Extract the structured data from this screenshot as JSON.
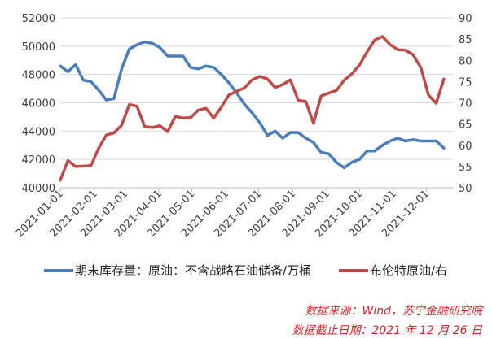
{
  "chart_data": {
    "type": "line",
    "x": [
      "2021-01-01",
      "2021-01-08",
      "2021-01-15",
      "2021-01-22",
      "2021-01-29",
      "2021-02-05",
      "2021-02-12",
      "2021-02-19",
      "2021-02-26",
      "2021-03-05",
      "2021-03-12",
      "2021-03-19",
      "2021-03-26",
      "2021-04-02",
      "2021-04-09",
      "2021-04-16",
      "2021-04-23",
      "2021-04-30",
      "2021-05-07",
      "2021-05-14",
      "2021-05-21",
      "2021-05-28",
      "2021-06-04",
      "2021-06-11",
      "2021-06-18",
      "2021-06-25",
      "2021-07-02",
      "2021-07-09",
      "2021-07-16",
      "2021-07-23",
      "2021-07-30",
      "2021-08-06",
      "2021-08-13",
      "2021-08-20",
      "2021-08-27",
      "2021-09-03",
      "2021-09-10",
      "2021-09-17",
      "2021-09-24",
      "2021-10-01",
      "2021-10-08",
      "2021-10-15",
      "2021-10-22",
      "2021-10-29",
      "2021-11-05",
      "2021-11-12",
      "2021-11-19",
      "2021-11-26",
      "2021-12-03",
      "2021-12-10",
      "2021-12-17"
    ],
    "x_ticks": [
      "2021-01-01",
      "2021-02-01",
      "2021-03-01",
      "2021-04-01",
      "2021-05-01",
      "2021-06-01",
      "2021-07-01",
      "2021-08-01",
      "2021-09-01",
      "2021-10-01",
      "2021-11-01",
      "2021-12-01"
    ],
    "y_left": {
      "ticks": [
        "40000",
        "42000",
        "44000",
        "46000",
        "48000",
        "50000",
        "52000"
      ],
      "lim": [
        40000,
        52000
      ]
    },
    "y_right": {
      "ticks": [
        "50",
        "55",
        "60",
        "65",
        "70",
        "75",
        "80",
        "85",
        "90"
      ],
      "lim": [
        50,
        90
      ]
    },
    "grid": true,
    "legend_position": "bottom",
    "series": [
      {
        "name": "期末库存量：原油：不含战略石油储备/万桶",
        "axis": "left",
        "color": "#4a7ebb",
        "values": [
          48600,
          48200,
          48700,
          47600,
          47500,
          46900,
          46200,
          46300,
          48400,
          49800,
          50100,
          50300,
          50200,
          49900,
          49300,
          49300,
          49300,
          48500,
          48400,
          48600,
          48500,
          48000,
          47400,
          46700,
          45900,
          45300,
          44600,
          43700,
          44000,
          43500,
          43900,
          43900,
          43500,
          43200,
          42500,
          42400,
          41800,
          41400,
          41800,
          42000,
          42600,
          42600,
          43000,
          43300,
          43500,
          43300,
          43400,
          43300,
          43300,
          43300,
          42800
        ],
        "values_note": ""
      },
      {
        "name": "布伦特原油/右",
        "axis": "right",
        "color": "#be4b48",
        "values": [
          51.8,
          56.4,
          55.0,
          55.1,
          55.2,
          59.3,
          62.4,
          62.9,
          64.7,
          69.6,
          69.2,
          64.4,
          64.2,
          64.6,
          63.2,
          66.8,
          66.4,
          66.5,
          68.3,
          68.7,
          66.4,
          69.0,
          71.9,
          72.7,
          73.5,
          75.4,
          76.2,
          75.6,
          73.6,
          74.3,
          75.4,
          70.6,
          70.3,
          65.2,
          71.6,
          72.3,
          72.9,
          75.3,
          76.8,
          78.9,
          82.0,
          84.8,
          85.6,
          83.7,
          82.5,
          82.4,
          81.3,
          78.3,
          71.8,
          69.9,
          75.6
        ]
      }
    ]
  },
  "source": {
    "line1": "数据来源：Wind，苏宁金融研究院",
    "line2": "数据截止日期：2021 年 12 月 26 日"
  }
}
